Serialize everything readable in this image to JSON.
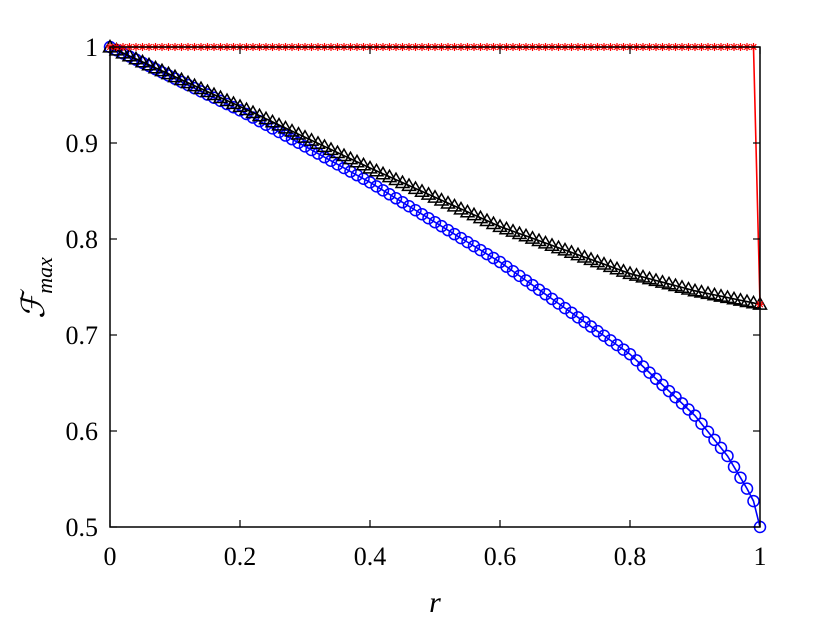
{
  "chart_data": {
    "type": "line",
    "xlabel": "r",
    "ylabel": {
      "main": "ℱ",
      "sub": "max"
    },
    "xlim": [
      0,
      1
    ],
    "ylim": [
      0.5,
      1
    ],
    "xticks": [
      0,
      0.2,
      0.4,
      0.6,
      0.8,
      1
    ],
    "xtick_labels": [
      "0",
      "0.2",
      "0.4",
      "0.6",
      "0.8",
      "1"
    ],
    "yticks": [
      0.5,
      0.6,
      0.7,
      0.8,
      0.9,
      1
    ],
    "ytick_labels": [
      "0.5",
      "0.6",
      "0.7",
      "0.8",
      "0.9",
      "1"
    ],
    "grid": false,
    "series": [
      {
        "color": "#0000ff",
        "marker": "circle",
        "x": [
          0,
          0.2,
          0.4,
          0.6,
          0.8,
          0.9,
          0.95,
          0.98,
          0.99,
          1.0
        ],
        "y": [
          1.0,
          0.934,
          0.859,
          0.776,
          0.68,
          0.616,
          0.574,
          0.54,
          0.527,
          0.5
        ]
      },
      {
        "color": "#000000",
        "marker": "triangle",
        "x": [
          0,
          0.2,
          0.4,
          0.6,
          0.8,
          0.9,
          1.0
        ],
        "y": [
          1.0,
          0.938,
          0.874,
          0.813,
          0.764,
          0.746,
          0.732
        ]
      },
      {
        "color": "#ff0000",
        "marker": "star",
        "x": [
          0,
          0.2,
          0.4,
          0.6,
          0.8,
          0.99,
          1.0
        ],
        "y": [
          1.0,
          1.0,
          1.0,
          1.0,
          1.0,
          1.0,
          0.732
        ]
      }
    ]
  }
}
